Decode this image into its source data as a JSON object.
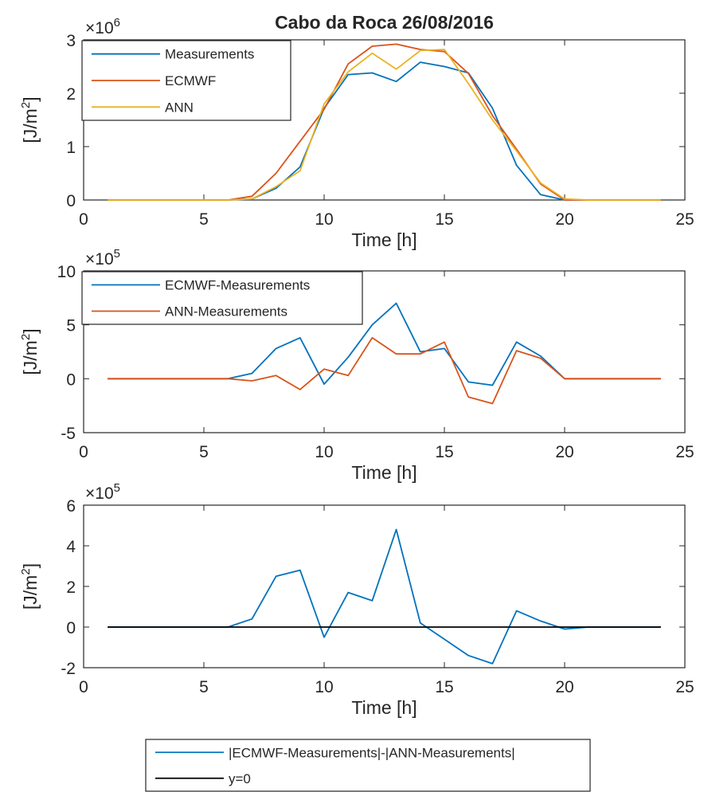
{
  "chart_data": [
    {
      "type": "line",
      "title": "Cabo da Roca 26/08/2016",
      "xlabel": "Time [h]",
      "ylabel": "[J/m2]",
      "y_multiplier": "×10^6",
      "exp_base": "×10",
      "exp_power": "6",
      "xlim": [
        0,
        25
      ],
      "ylim": [
        0,
        3
      ],
      "xticks": [
        "0",
        "5",
        "10",
        "15",
        "20",
        "25"
      ],
      "yticks": [
        "0",
        "1",
        "2",
        "3"
      ],
      "grid": false,
      "legend_position": "top-left",
      "x": [
        1,
        2,
        3,
        4,
        5,
        6,
        7,
        8,
        9,
        10,
        11,
        12,
        13,
        14,
        15,
        16,
        17,
        18,
        19,
        20,
        21,
        22,
        23,
        24
      ],
      "series": [
        {
          "name": "Measurements",
          "color": "#0072BD",
          "values": [
            0,
            0,
            0,
            0,
            0,
            0,
            0.02,
            0.22,
            0.62,
            1.72,
            2.35,
            2.38,
            2.22,
            2.58,
            2.5,
            2.38,
            1.72,
            0.65,
            0.1,
            0,
            0,
            0,
            0,
            0
          ]
        },
        {
          "name": "ECMWF",
          "color": "#D95319",
          "values": [
            0,
            0,
            0,
            0,
            0,
            0,
            0.07,
            0.5,
            1.1,
            1.7,
            2.55,
            2.88,
            2.92,
            2.82,
            2.78,
            2.37,
            1.58,
            0.95,
            0.3,
            0,
            0,
            0,
            0,
            0
          ]
        },
        {
          "name": "ANN",
          "color": "#EDB120",
          "values": [
            0,
            0,
            0,
            0,
            0,
            0,
            0.02,
            0.25,
            0.55,
            1.8,
            2.4,
            2.75,
            2.45,
            2.8,
            2.82,
            2.18,
            1.5,
            0.92,
            0.32,
            0.02,
            0,
            0,
            0,
            0
          ]
        }
      ]
    },
    {
      "type": "line",
      "title": "",
      "xlabel": "Time [h]",
      "ylabel": "[J/m2]",
      "y_multiplier": "×10^5",
      "exp_base": "×10",
      "exp_power": "5",
      "xlim": [
        0,
        25
      ],
      "ylim": [
        -5,
        10
      ],
      "xticks": [
        "0",
        "5",
        "10",
        "15",
        "20",
        "25"
      ],
      "yticks": [
        "-5",
        "0",
        "5",
        "10"
      ],
      "grid": false,
      "legend_position": "top-left",
      "x": [
        1,
        2,
        3,
        4,
        5,
        6,
        7,
        8,
        9,
        10,
        11,
        12,
        13,
        14,
        15,
        16,
        17,
        18,
        19,
        20,
        21,
        22,
        23,
        24
      ],
      "series": [
        {
          "name": "ECMWF-Measurements",
          "color": "#0072BD",
          "values": [
            0,
            0,
            0,
            0,
            0,
            0,
            0.5,
            2.8,
            3.8,
            -0.5,
            2.0,
            5.0,
            7.0,
            2.5,
            2.8,
            -0.3,
            -0.6,
            3.4,
            2.1,
            0,
            0,
            0,
            0,
            0
          ]
        },
        {
          "name": "ANN-Measurements",
          "color": "#D95319",
          "values": [
            0,
            0,
            0,
            0,
            0,
            0,
            -0.2,
            0.3,
            -1.0,
            0.9,
            0.3,
            3.8,
            2.3,
            2.3,
            3.4,
            -1.7,
            -2.3,
            2.6,
            1.9,
            0,
            0,
            0,
            0,
            0
          ]
        }
      ]
    },
    {
      "type": "line",
      "title": "",
      "xlabel": "Time [h]",
      "ylabel": "[J/m2]",
      "y_multiplier": "×10^5",
      "exp_base": "×10",
      "exp_power": "5",
      "xlim": [
        0,
        25
      ],
      "ylim": [
        -2,
        6
      ],
      "xticks": [
        "0",
        "5",
        "10",
        "15",
        "20",
        "25"
      ],
      "yticks": [
        "-2",
        "0",
        "2",
        "4",
        "6"
      ],
      "grid": false,
      "legend_position": "bottom-outside",
      "x": [
        1,
        2,
        3,
        4,
        5,
        6,
        7,
        8,
        9,
        10,
        11,
        12,
        13,
        14,
        15,
        16,
        17,
        18,
        19,
        20,
        21,
        22,
        23,
        24
      ],
      "series": [
        {
          "name": "|ECMWF-Measurements|-|ANN-Measurements|",
          "color": "#0072BD",
          "values": [
            0,
            0,
            0,
            0,
            0,
            0,
            0.4,
            2.5,
            2.8,
            -0.5,
            1.7,
            1.3,
            4.8,
            0.2,
            -0.6,
            -1.4,
            -1.8,
            0.8,
            0.3,
            -0.1,
            0,
            0,
            0,
            0
          ]
        },
        {
          "name": "y=0",
          "color": "#000000",
          "values": [
            0,
            0,
            0,
            0,
            0,
            0,
            0,
            0,
            0,
            0,
            0,
            0,
            0,
            0,
            0,
            0,
            0,
            0,
            0,
            0,
            0,
            0,
            0,
            0
          ]
        }
      ]
    }
  ]
}
